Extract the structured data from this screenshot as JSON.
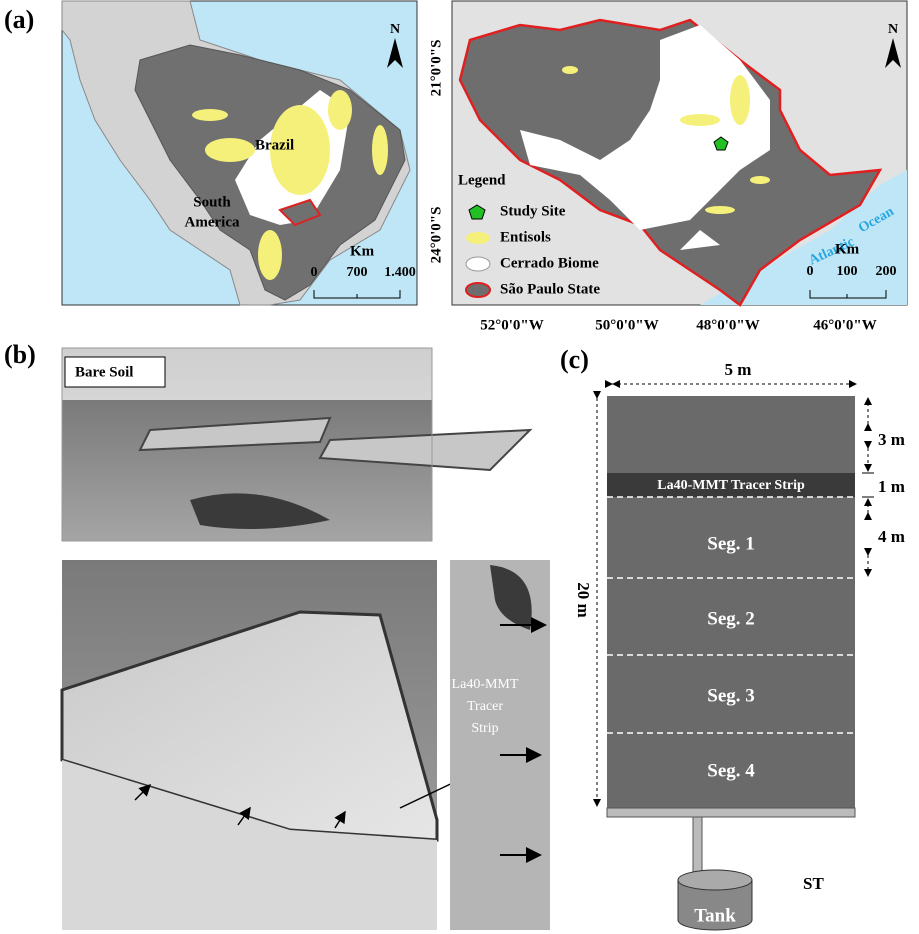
{
  "panel_a": {
    "label": "(a)",
    "overview_map": {
      "north": "N",
      "country": "Brazil",
      "continent": [
        "South",
        "America"
      ],
      "scale": {
        "unit": "Km",
        "ticks": [
          "0",
          "700",
          "1.400"
        ]
      }
    },
    "state_map": {
      "north": "N",
      "lat_labels": [
        "21°0'0\"S",
        "24°0'0\"S"
      ],
      "lon_labels": [
        "52°0'0\"W",
        "50°0'0\"W",
        "48°0'0\"W",
        "46°0'0\"W"
      ],
      "legend": {
        "title": "Legend",
        "items": [
          "Study Site",
          "Entisols",
          "Cerrado Biome",
          "São Paulo State"
        ]
      },
      "ocean": [
        "Atlantic",
        "Ocean"
      ],
      "scale": {
        "unit": "Km",
        "ticks": [
          "0",
          "100",
          "200"
        ]
      }
    }
  },
  "panel_b": {
    "label": "(b)",
    "photo_label": "Bare Soil",
    "strip_label": [
      "La40-MMT",
      "Tracer",
      "Strip"
    ]
  },
  "panel_c": {
    "label": "(c)",
    "width": "5 m",
    "length": "20 m",
    "dims": [
      "3 m",
      "1 m",
      "4 m"
    ],
    "strip": "La40-MMT Tracer Strip",
    "segments": [
      "Seg. 1",
      "Seg. 2",
      "Seg. 3",
      "Seg. 4"
    ],
    "tank": "Tank",
    "tank_id": "ST"
  }
}
